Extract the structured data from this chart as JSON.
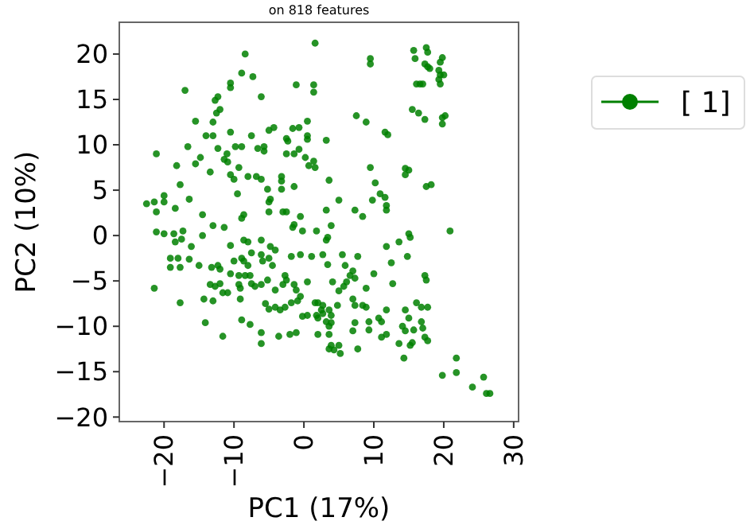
{
  "chart_data": {
    "type": "scatter",
    "title": "on 818 features",
    "xlabel": "PC1 (17%)",
    "ylabel": "PC2 (10%)",
    "xlim": [
      -26.4,
      30.7
    ],
    "ylim": [
      -20.5,
      23.5
    ],
    "xticks": [
      -20,
      -10,
      0,
      10,
      20,
      30
    ],
    "yticks": [
      -20,
      -15,
      -10,
      -5,
      0,
      5,
      10,
      15,
      20
    ],
    "legend": "right",
    "marker": "circle",
    "grid": false,
    "series": [
      {
        "name": "[ 1]",
        "color": "#008000",
        "x": [
          1.6,
          -8.4,
          -8.9,
          -7.3,
          -10.5,
          -10.5,
          -17,
          -1.1,
          1.4,
          1.4,
          -6.1,
          -12.3,
          -12.7,
          -12,
          -12.5,
          -15.5,
          -13,
          0.5,
          -5,
          -4.3,
          -1.6,
          -0.7,
          -14,
          -13,
          -10.5,
          -7.5,
          -2.5,
          -2.3,
          0.5,
          0.5,
          -16.6,
          -12.3,
          -9.8,
          -8.9,
          -6.6,
          -5.7,
          -5.7,
          -21.1,
          -11,
          -2.5,
          -0.7,
          -1.4,
          -14.8,
          -15.5,
          -11.4,
          -10.9,
          0.2,
          1.4,
          0.7,
          1.6,
          -18.2,
          -9.3,
          -13.4,
          -8,
          -6.1,
          -6.8,
          -10.5,
          -10,
          -3.2,
          -3.2,
          -17.7,
          -9.5,
          -5.2,
          -4.8,
          -5,
          -3.2,
          -1.4,
          3.6,
          -22.5,
          -21.4,
          -20,
          -20,
          -18.4,
          -16.4,
          -21.1,
          -14.5,
          -8.6,
          -8.9,
          -3,
          -2.5,
          -0.5,
          3.2,
          -13,
          -11.4,
          -5,
          -1.6,
          -1.4,
          -0.2,
          1.8,
          -21.1,
          -20,
          -18.6,
          -18.4,
          -17.5,
          -17.3,
          -16.1,
          -14.5,
          -10.5,
          -8.6,
          -8,
          -6.1,
          -4.8,
          -4.1,
          3.2,
          -19.1,
          -18,
          -19.1,
          -17.7,
          -16.4,
          -15,
          -13.2,
          -12.3,
          -12,
          -10,
          -8.9,
          -8.6,
          -7.5,
          -8,
          -6.1,
          -5.9,
          -4.5,
          -5,
          -1.8,
          -0.5,
          1.1,
          3.4,
          -10.5,
          -9.3,
          -8.4,
          -7.7,
          -7.5,
          -13.4,
          -12.7,
          -12,
          -10.9,
          -11.6,
          -9.3,
          -9.1,
          -7,
          -6.1,
          -5.2,
          -4.1,
          -2.7,
          -2.5,
          -3,
          -1.4,
          -1.1,
          0.5,
          -0.5,
          -21.4,
          -17.7,
          -14.3,
          -13,
          -9.1,
          -5.5,
          -5,
          -4.1,
          -3.4,
          -2.7,
          -1.8,
          -0.9,
          1.6,
          -0.2,
          0.5,
          1.8,
          2.7,
          3.2,
          -8.9,
          -7.7,
          -14.1,
          -11.6,
          -6.1,
          -3.6,
          -2,
          -1.1,
          -6.1,
          3.6,
          3.6,
          7.3,
          8.4,
          11.8,
          3.9,
          3.4,
          2.7,
          5.5,
          5.9,
          7.7,
          11.8,
          13.6,
          15,
          15.2,
          14.8,
          12.5,
          20.9,
          7,
          6.6,
          7.3,
          6.1,
          5.7,
          5,
          10,
          4.1,
          8.9,
          17.3,
          17.5,
          12.7,
          2,
          2.7,
          3.6,
          3.9,
          2.5,
          4.8,
          7,
          7.3,
          8.4,
          8.9,
          11.8,
          10.7,
          11.1,
          14.5,
          15,
          16.1,
          16.8,
          17.7,
          2,
          3.6,
          3.9,
          7.3,
          7,
          9.3,
          9.3,
          11.1,
          11.8,
          14.1,
          14.5,
          15.7,
          16.8,
          17,
          15.5,
          15.2,
          13.6,
          17.3,
          17.7,
          3.9,
          4.3,
          5,
          5.2,
          7.7,
          14.3,
          2,
          19.8,
          21.8,
          21.8,
          24.1,
          25.7,
          26.1,
          26.6,
          15.7,
          15.9,
          17.5,
          17.7,
          17.3,
          17.7,
          18,
          9.5,
          9.5,
          19.8,
          19.5,
          19.3,
          19.5,
          20,
          19.3,
          19.5,
          16.1,
          16.6,
          17,
          15.5,
          16.4,
          17.3,
          19.8,
          20.2,
          19.8,
          7.5,
          8.9,
          11.6,
          12,
          3.2,
          14.5,
          15,
          14.5,
          9.5,
          10.2,
          17.5,
          18.2,
          9.8,
          10.9,
          11.6,
          11.8,
          5
        ],
        "values": [
          21.2,
          20,
          17.9,
          17.5,
          16.8,
          16.3,
          16,
          16.6,
          16.6,
          15.8,
          15.3,
          15.3,
          14.9,
          13.9,
          13.5,
          12.6,
          12.5,
          12.6,
          11.6,
          11.9,
          11.8,
          11.9,
          11,
          11,
          11.4,
          11,
          10.7,
          10.4,
          11,
          10.6,
          9.8,
          9.6,
          9.8,
          9.8,
          9.6,
          9.8,
          9.3,
          9,
          9,
          9,
          9.5,
          9,
          8.6,
          7.9,
          8.4,
          8.1,
          8.6,
          8.2,
          7.7,
          7.5,
          7.7,
          7.5,
          7,
          6.5,
          6.2,
          6.5,
          6.7,
          6.2,
          6.5,
          6,
          5.6,
          4.6,
          5.1,
          4,
          3.7,
          5.1,
          5.4,
          6.1,
          3.5,
          3.7,
          4.4,
          3.7,
          3,
          4,
          2.6,
          2.3,
          2.3,
          1.9,
          2.6,
          2.6,
          2.1,
          2.8,
          1.1,
          0.9,
          2.6,
          0.9,
          1.2,
          0.5,
          0.5,
          0.4,
          0.2,
          0.2,
          -0.7,
          -0.4,
          0.5,
          -1.2,
          0,
          -1.1,
          -0.5,
          -0.7,
          -0.5,
          -1.2,
          -1.6,
          -0.5,
          -2.5,
          -2.5,
          -3.5,
          -3.5,
          -2.6,
          -3.3,
          -3.5,
          -3.3,
          -3.7,
          -2.8,
          -2.5,
          -2.8,
          -1.9,
          -3.3,
          -2.1,
          -2.8,
          -3.3,
          -2.5,
          -2.3,
          -2.1,
          -2.3,
          -3.2,
          -4.2,
          -4.4,
          -4.4,
          -4.4,
          -5.3,
          -5.4,
          -5.6,
          -5.3,
          -6.3,
          -6.3,
          -5.4,
          -5.8,
          -5.6,
          -5.4,
          -4.9,
          -6,
          -4.4,
          -4.9,
          -5.4,
          -5.4,
          -6,
          -5.1,
          -6.7,
          -5.8,
          -7.4,
          -7,
          -7.2,
          -7,
          -7.5,
          -8.1,
          -7.9,
          -8.2,
          -7.9,
          -7.4,
          -7.2,
          -7.4,
          -8.9,
          -8.8,
          -8.8,
          -8.6,
          -9.5,
          -9.3,
          -9.8,
          -9.6,
          -11.1,
          -10.7,
          -11.1,
          -10.9,
          -10.7,
          -11.9,
          -12.5,
          -10.9,
          2.8,
          2.1,
          2.8,
          1.1,
          -0.2,
          -2.1,
          -2.1,
          -3.3,
          -2.3,
          -1.2,
          -0.7,
          0.2,
          -0.2,
          -2.3,
          -3,
          0.5,
          -3.9,
          -4.4,
          -4.7,
          -5.1,
          -5.6,
          -6.1,
          -4.2,
          -5.1,
          -5.8,
          -4.4,
          -4.9,
          -5.3,
          -7.4,
          -7.7,
          -8.2,
          -8.8,
          -8.2,
          -7.7,
          -7,
          -7.7,
          -7.7,
          -7.9,
          -8.2,
          -9.1,
          -9.5,
          -8.2,
          -9.1,
          -7.4,
          -7.9,
          -7.9,
          -9.1,
          -10,
          -9.6,
          -9.6,
          -10.5,
          -9.5,
          -10.4,
          -11.2,
          -10.9,
          -10,
          -10.5,
          -10.4,
          -9.5,
          -10.2,
          -11.8,
          -12.1,
          -11.9,
          -11.2,
          -11.6,
          -12.1,
          -12.6,
          -12.1,
          -13,
          -12.5,
          -13.5,
          -10.9,
          -15.4,
          -15.1,
          -13.5,
          -16.7,
          -15.6,
          -17.4,
          -17.4,
          20.4,
          19.5,
          20.7,
          20.2,
          18.9,
          18.6,
          18.4,
          19.5,
          18.9,
          19.6,
          19.1,
          18.2,
          17.7,
          17.7,
          17.2,
          16.7,
          16.7,
          16.7,
          16.7,
          13.9,
          13.5,
          12.8,
          13,
          13.2,
          12.3,
          13.2,
          12.5,
          11.4,
          11.1,
          10.5,
          7.4,
          7.2,
          6.7,
          7.5,
          5.8,
          5.4,
          5.6,
          3.9,
          4.6,
          4.2,
          3.3,
          3.9
        ]
      }
    ]
  }
}
